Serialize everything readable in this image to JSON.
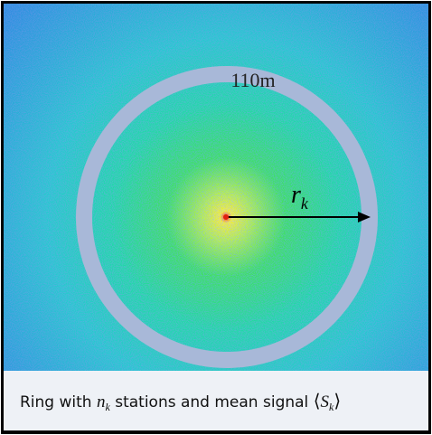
{
  "ring_label": "110m",
  "radius_label": {
    "symbol": "r",
    "subscript": "k"
  },
  "caption": {
    "parts": [
      "Ring with ",
      "n",
      "k",
      " stations and mean signal ",
      "⟨",
      "S",
      "k",
      "⟩"
    ]
  }
}
